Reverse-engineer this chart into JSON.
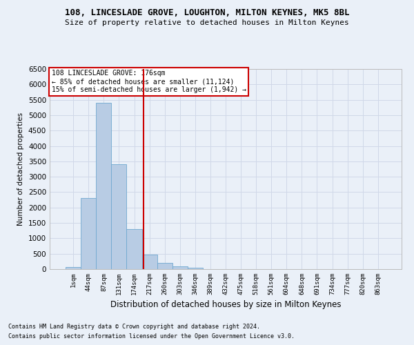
{
  "title": "108, LINCESLADE GROVE, LOUGHTON, MILTON KEYNES, MK5 8BL",
  "subtitle": "Size of property relative to detached houses in Milton Keynes",
  "xlabel": "Distribution of detached houses by size in Milton Keynes",
  "ylabel": "Number of detached properties",
  "categories": [
    "1sqm",
    "44sqm",
    "87sqm",
    "131sqm",
    "174sqm",
    "217sqm",
    "260sqm",
    "303sqm",
    "346sqm",
    "389sqm",
    "432sqm",
    "475sqm",
    "518sqm",
    "561sqm",
    "604sqm",
    "648sqm",
    "691sqm",
    "734sqm",
    "777sqm",
    "820sqm",
    "863sqm"
  ],
  "values": [
    70,
    2300,
    5400,
    3400,
    1300,
    480,
    200,
    100,
    50,
    10,
    5,
    5,
    2,
    0,
    0,
    0,
    0,
    0,
    0,
    0,
    0
  ],
  "bar_color": "#b8cce4",
  "bar_edge_color": "#6fa8d0",
  "vline_x": 4.62,
  "vline_color": "#cc0000",
  "ylim": [
    0,
    6500
  ],
  "yticks": [
    0,
    500,
    1000,
    1500,
    2000,
    2500,
    3000,
    3500,
    4000,
    4500,
    5000,
    5500,
    6000,
    6500
  ],
  "annotation_text": "108 LINCESLADE GROVE: 176sqm\n← 85% of detached houses are smaller (11,124)\n15% of semi-detached houses are larger (1,942) →",
  "annotation_box_color": "#ffffff",
  "annotation_box_edge": "#cc0000",
  "grid_color": "#d0d8e8",
  "bg_color": "#eaf0f8",
  "footer1": "Contains HM Land Registry data © Crown copyright and database right 2024.",
  "footer2": "Contains public sector information licensed under the Open Government Licence v3.0."
}
